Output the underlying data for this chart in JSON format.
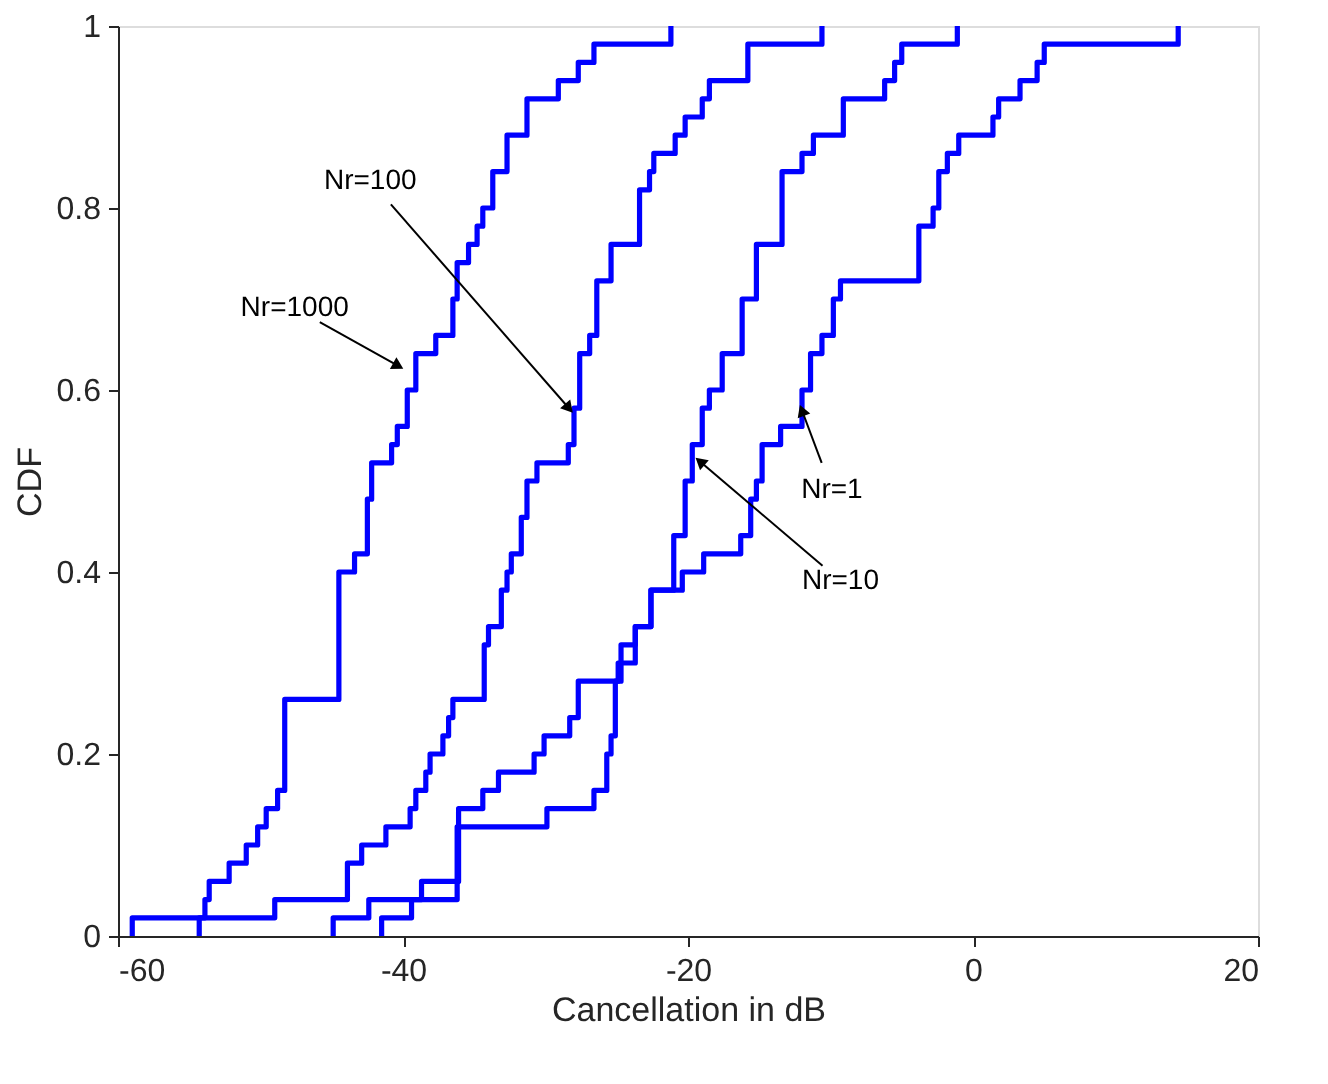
{
  "chart_data": {
    "type": "step",
    "xlabel": "Cancellation in dB",
    "ylabel": "CDF",
    "xlim": [
      -60,
      20
    ],
    "xticks": [
      -60,
      -40,
      -20,
      0,
      20
    ],
    "ylim": [
      0,
      1
    ],
    "yticks": [
      0,
      0.2,
      0.4,
      0.6,
      0.8,
      1
    ],
    "grid": false,
    "line_style": "solid",
    "marker": "none",
    "series": [
      {
        "color": "#0000ff",
        "x": [
          -59,
          -59,
          -53.9,
          -53.6,
          -52.2,
          -51.0,
          -50.2,
          -49.6,
          -48.8,
          -48.3,
          -44.5,
          -43.4,
          -42.5,
          -42.2,
          -40.8,
          -40.4,
          -39.7,
          -39.1,
          -37.7,
          -36.5,
          -36.2,
          -35.4,
          -34.8,
          -34.4,
          -33.7,
          -32.7,
          -31.3,
          -29.1,
          -27.7,
          -26.6,
          -21.2
        ],
        "values": [
          0,
          0.02,
          0.04,
          0.06,
          0.08,
          0.1,
          0.12,
          0.14,
          0.16,
          0.26,
          0.4,
          0.42,
          0.48,
          0.52,
          0.54,
          0.56,
          0.6,
          0.64,
          0.66,
          0.7,
          0.74,
          0.76,
          0.78,
          0.8,
          0.84,
          0.88,
          0.92,
          0.94,
          0.96,
          0.98,
          1.0
        ]
      },
      {
        "color": "#0000ff",
        "x": [
          -54.3,
          -54.3,
          -49.0,
          -43.9,
          -42.9,
          -41.2,
          -39.5,
          -39.1,
          -38.4,
          -38.1,
          -37.2,
          -36.8,
          -36.5,
          -34.3,
          -34.0,
          -33.1,
          -32.7,
          -32.4,
          -31.7,
          -31.3,
          -30.6,
          -28.4,
          -28.0,
          -27.6,
          -26.9,
          -26.4,
          -25.4,
          -23.4,
          -22.7,
          -22.4,
          -20.9,
          -20.2,
          -19.0,
          -18.5,
          -15.8,
          -10.6
        ],
        "values": [
          0,
          0.02,
          0.04,
          0.08,
          0.1,
          0.12,
          0.14,
          0.16,
          0.18,
          0.2,
          0.22,
          0.24,
          0.26,
          0.32,
          0.34,
          0.38,
          0.4,
          0.42,
          0.46,
          0.5,
          0.52,
          0.54,
          0.58,
          0.64,
          0.66,
          0.72,
          0.76,
          0.82,
          0.84,
          0.86,
          0.88,
          0.9,
          0.92,
          0.94,
          0.98,
          1.0
        ]
      },
      {
        "color": "#0000ff",
        "x": [
          -41.5,
          -41.5,
          -39.4,
          -36.2,
          -29.9,
          -26.6,
          -25.7,
          -25.4,
          -25.1,
          -24.7,
          -23.7,
          -22.6,
          -21.0,
          -20.2,
          -19.7,
          -19.0,
          -18.5,
          -17.6,
          -16.2,
          -15.2,
          -13.4,
          -12.0,
          -11.2,
          -9.1,
          -6.2,
          -5.5,
          -5.0,
          -1.1
        ],
        "values": [
          0,
          0.02,
          0.04,
          0.12,
          0.14,
          0.16,
          0.2,
          0.22,
          0.28,
          0.32,
          0.34,
          0.38,
          0.44,
          0.5,
          0.54,
          0.58,
          0.6,
          0.64,
          0.7,
          0.76,
          0.84,
          0.86,
          0.88,
          0.92,
          0.94,
          0.96,
          0.98,
          1.0
        ]
      },
      {
        "color": "#0000ff",
        "x": [
          -44.9,
          -44.9,
          -42.4,
          -38.7,
          -36.1,
          -34.4,
          -33.3,
          -30.8,
          -30.1,
          -28.3,
          -27.7,
          -24.9,
          -23.7,
          -22.6,
          -20.4,
          -18.9,
          -16.3,
          -15.6,
          -15.2,
          -14.8,
          -13.5,
          -12.0,
          -11.4,
          -10.6,
          -9.8,
          -9.3,
          -3.8,
          -2.8,
          -2.4,
          -1.8,
          -1.0,
          1.4,
          1.8,
          3.3,
          4.5,
          5.0,
          14.4
        ],
        "values": [
          0,
          0.02,
          0.04,
          0.06,
          0.14,
          0.16,
          0.18,
          0.2,
          0.22,
          0.24,
          0.28,
          0.3,
          0.34,
          0.38,
          0.4,
          0.42,
          0.44,
          0.48,
          0.5,
          0.54,
          0.56,
          0.6,
          0.64,
          0.66,
          0.7,
          0.72,
          0.78,
          0.8,
          0.84,
          0.86,
          0.88,
          0.9,
          0.92,
          0.94,
          0.96,
          0.98,
          1.0
        ]
      }
    ],
    "annotations": [
      {
        "text": "Nr=100",
        "x": -27.8,
        "y": 0.57
      },
      {
        "text": "Nr=1000",
        "x": -39.6,
        "y": 0.62
      },
      {
        "text": "Nr=1",
        "x": -12.3,
        "y": 0.59
      },
      {
        "text": "Nr=10",
        "x": -19.8,
        "y": 0.53
      }
    ]
  }
}
